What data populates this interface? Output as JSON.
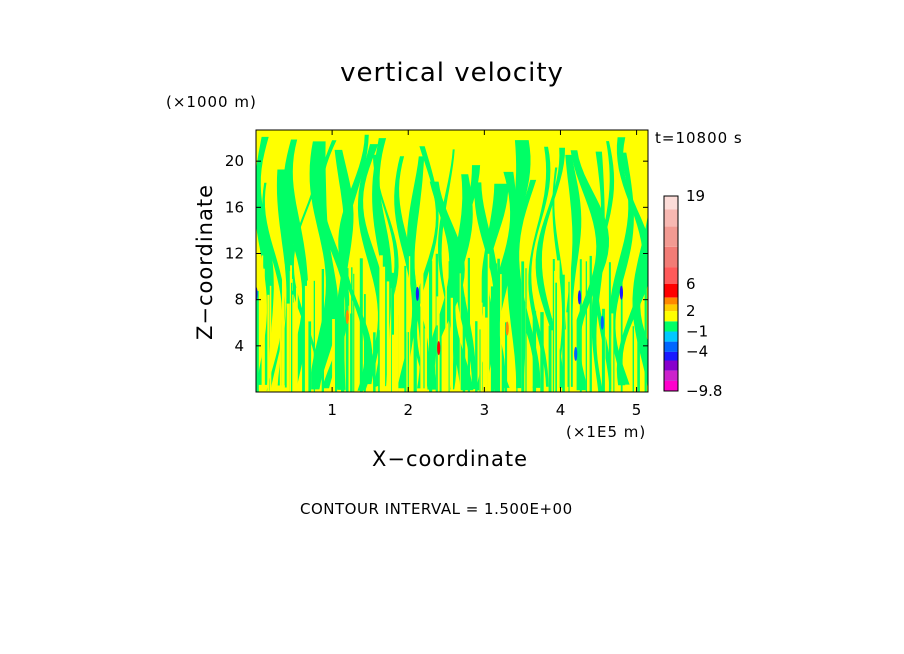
{
  "chart_data": {
    "type": "heatmap",
    "title": "vertical velocity",
    "xlabel": "X−coordinate",
    "ylabel": "Z−coordinate",
    "x_unit": "(×1E5 m)",
    "y_unit": "(×1000 m)",
    "time_label": "t=10800 s",
    "contour_interval": "CONTOUR INTERVAL = 1.500E+00",
    "xlim": [
      0,
      5.15
    ],
    "ylim": [
      0,
      22.7
    ],
    "xticks": [
      1,
      2,
      3,
      4,
      5
    ],
    "yticks": [
      4,
      8,
      12,
      16,
      20
    ],
    "field_colors": {
      "positive": "#ffff00",
      "negative": "#00ff66"
    },
    "colorbar": {
      "range": [
        -9.8,
        19
      ],
      "tick_labels": [
        {
          "label": "19",
          "value": 19
        },
        {
          "label": "6",
          "value": 6
        },
        {
          "label": "2",
          "value": 2
        },
        {
          "label": "−1",
          "value": -1
        },
        {
          "label": "−4",
          "value": -4
        },
        {
          "label": "−9.8",
          "value": -9.8
        }
      ],
      "bands": [
        {
          "from": -9.8,
          "to": -8.3,
          "color": "#ff00cc"
        },
        {
          "from": -8.3,
          "to": -6.8,
          "color": "#cc22cc"
        },
        {
          "from": -6.8,
          "to": -5.3,
          "color": "#8800cc"
        },
        {
          "from": -5.3,
          "to": -4.0,
          "color": "#1a1aff"
        },
        {
          "from": -4.0,
          "to": -2.5,
          "color": "#0066ff"
        },
        {
          "from": -2.5,
          "to": -1.0,
          "color": "#00c8ff"
        },
        {
          "from": -1.0,
          "to": 0.5,
          "color": "#00ff66"
        },
        {
          "from": 0.5,
          "to": 2.0,
          "color": "#ffff00"
        },
        {
          "from": 2.0,
          "to": 3.0,
          "color": "#ffcc00"
        },
        {
          "from": 3.0,
          "to": 4.0,
          "color": "#ff8800"
        },
        {
          "from": 4.0,
          "to": 6.0,
          "color": "#ff0000"
        },
        {
          "from": 6.0,
          "to": 8.5,
          "color": "#ff5a5a"
        },
        {
          "from": 8.5,
          "to": 11.5,
          "color": "#f27c76"
        },
        {
          "from": 11.5,
          "to": 14.5,
          "color": "#f29a92"
        },
        {
          "from": 14.5,
          "to": 17.0,
          "color": "#f7b8b2"
        },
        {
          "from": 17.0,
          "to": 19.0,
          "color": "#fcdcd8"
        }
      ]
    }
  }
}
